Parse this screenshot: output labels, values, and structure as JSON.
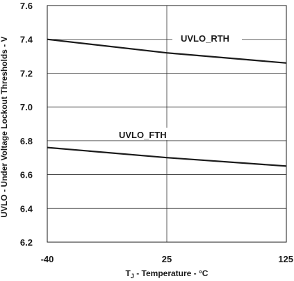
{
  "chart_data": {
    "type": "line",
    "xlabel_main": "T",
    "xlabel_sub": "J",
    "xlabel_rest": " - Temperature - °C",
    "ylabel": "UVLO - Under Voltage Lockout Thresholds - V",
    "x_ticks": [
      "-40",
      "25",
      "125"
    ],
    "x_tick_values": [
      -40,
      25,
      125
    ],
    "y_ticks": [
      "6.2",
      "6.4",
      "6.6",
      "6.8",
      "7.0",
      "7.2",
      "7.4",
      "7.6"
    ],
    "y_tick_values": [
      6.2,
      6.4,
      6.6,
      6.8,
      7.0,
      7.2,
      7.4,
      7.6
    ],
    "ylim": [
      6.2,
      7.6
    ],
    "grid": true,
    "series": [
      {
        "name": "UVLO_RTH",
        "x": [
          -40,
          25,
          125
        ],
        "y": [
          7.4,
          7.32,
          7.26
        ]
      },
      {
        "name": "UVLO_FTH",
        "x": [
          -40,
          25,
          125
        ],
        "y": [
          6.76,
          6.7,
          6.65
        ]
      }
    ],
    "colors": {
      "line": "#1a1a1a",
      "grid": "#333333"
    }
  }
}
